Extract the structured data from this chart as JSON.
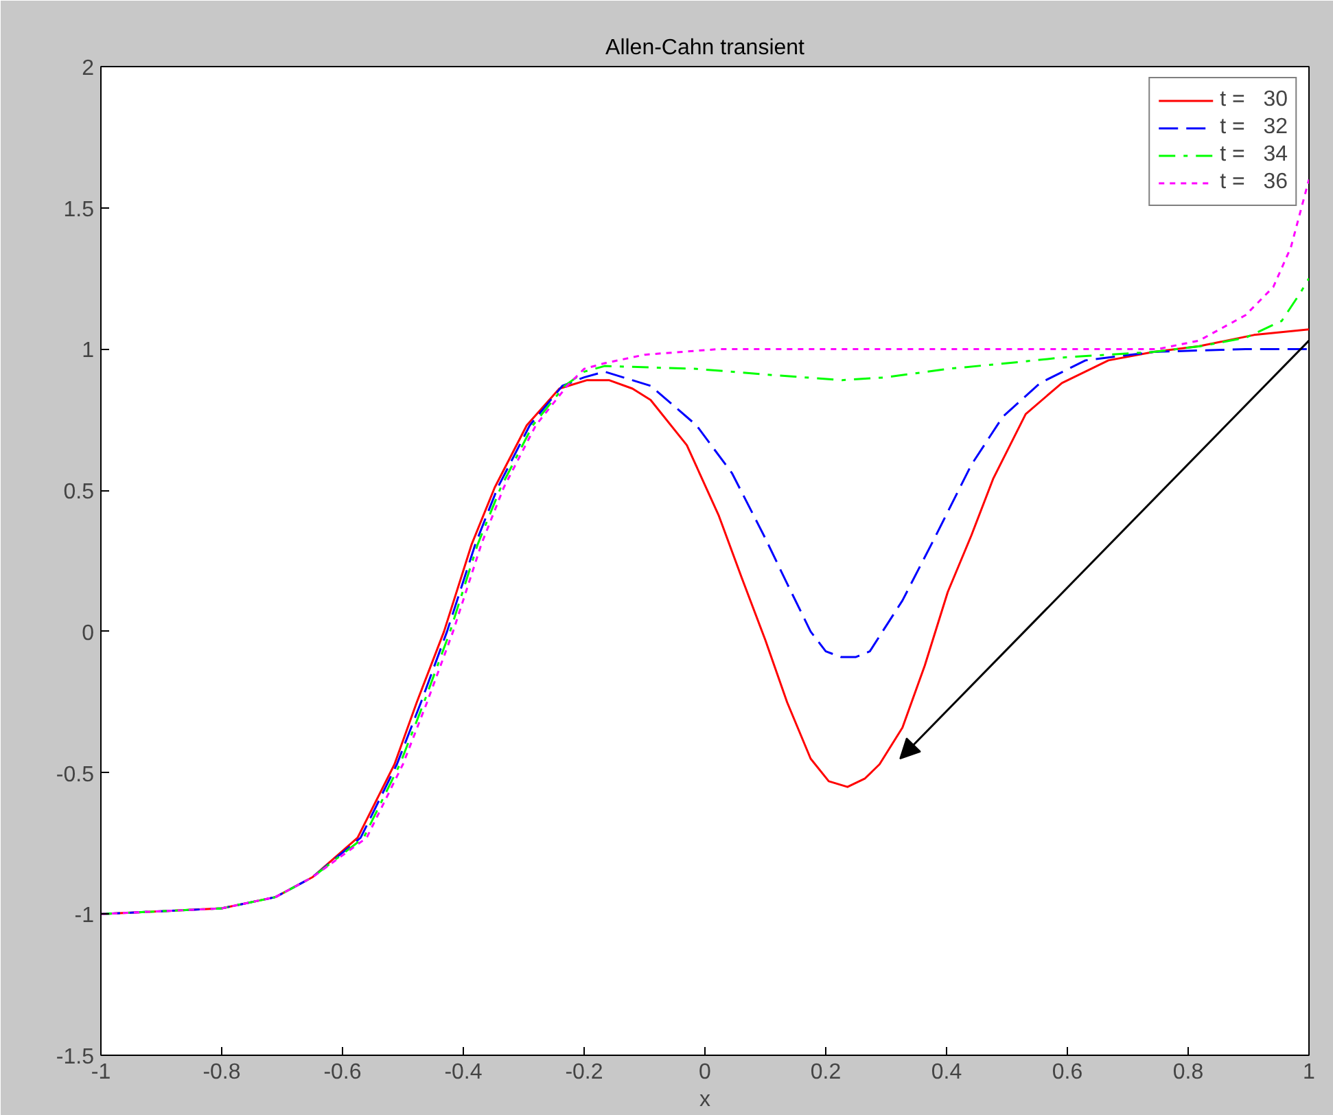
{
  "chart_data": {
    "type": "line",
    "title": "Allen-Cahn transient",
    "xlabel": "x",
    "xlim": [
      -1,
      1
    ],
    "ylim": [
      -1.5,
      2
    ],
    "xticks": [
      -1,
      -0.8,
      -0.6,
      -0.4,
      -0.2,
      0,
      0.2,
      0.4,
      0.6,
      0.8,
      1
    ],
    "yticks": [
      -1.5,
      -1,
      -0.5,
      0,
      0.5,
      1,
      1.5,
      2
    ],
    "grid": false,
    "legend": "top right",
    "marker": "none",
    "series": [
      {
        "name": "t =   30",
        "color": "#ff0000",
        "line_style": "solid",
        "x": [
          -1,
          -0.9,
          -0.8,
          -0.711,
          -0.65,
          -0.575,
          -0.514,
          -0.477,
          -0.432,
          -0.386,
          -0.348,
          -0.295,
          -0.241,
          -0.195,
          -0.159,
          -0.12,
          -0.09,
          -0.03,
          0.023,
          0.061,
          0.1,
          0.136,
          0.175,
          0.205,
          0.236,
          0.265,
          0.289,
          0.327,
          0.364,
          0.402,
          0.441,
          0.477,
          0.531,
          0.591,
          0.668,
          0.743,
          0.818,
          0.909,
          1.0
        ],
        "values": [
          -1,
          -0.99,
          -0.98,
          -0.94,
          -0.87,
          -0.73,
          -0.47,
          -0.25,
          0.0,
          0.31,
          0.51,
          0.73,
          0.86,
          0.89,
          0.89,
          0.86,
          0.82,
          0.66,
          0.41,
          0.19,
          -0.03,
          -0.25,
          -0.45,
          -0.53,
          -0.55,
          -0.52,
          -0.47,
          -0.34,
          -0.12,
          0.14,
          0.34,
          0.54,
          0.77,
          0.88,
          0.96,
          0.99,
          1.01,
          1.05,
          1.07
        ]
      },
      {
        "name": "t =   32",
        "color": "#0000ff",
        "line_style": "dashed",
        "x": [
          -1,
          -0.9,
          -0.8,
          -0.711,
          -0.65,
          -0.57,
          -0.51,
          -0.47,
          -0.427,
          -0.38,
          -0.343,
          -0.29,
          -0.236,
          -0.2,
          -0.166,
          -0.09,
          -0.014,
          0.045,
          0.1,
          0.136,
          0.175,
          0.2,
          0.225,
          0.25,
          0.273,
          0.327,
          0.38,
          0.441,
          0.493,
          0.555,
          0.63,
          0.743,
          0.895,
          1.0
        ],
        "values": [
          -1,
          -0.99,
          -0.98,
          -0.94,
          -0.87,
          -0.73,
          -0.47,
          -0.25,
          0.0,
          0.31,
          0.51,
          0.73,
          0.87,
          0.9,
          0.92,
          0.87,
          0.73,
          0.56,
          0.33,
          0.17,
          0.0,
          -0.07,
          -0.09,
          -0.09,
          -0.07,
          0.11,
          0.33,
          0.59,
          0.76,
          0.88,
          0.96,
          0.99,
          1.0,
          1.0
        ]
      },
      {
        "name": "t =   34",
        "color": "#00ff00",
        "line_style": "dashdot",
        "x": [
          -1,
          -0.9,
          -0.8,
          -0.711,
          -0.65,
          -0.565,
          -0.505,
          -0.465,
          -0.422,
          -0.376,
          -0.338,
          -0.285,
          -0.232,
          -0.2,
          -0.166,
          -0.014,
          0.1,
          0.227,
          0.3,
          0.402,
          0.5,
          0.591,
          0.743,
          0.82,
          0.895,
          0.955,
          0.986,
          1.0
        ],
        "values": [
          -1,
          -0.99,
          -0.98,
          -0.94,
          -0.87,
          -0.73,
          -0.47,
          -0.25,
          0.0,
          0.31,
          0.51,
          0.73,
          0.87,
          0.92,
          0.94,
          0.93,
          0.91,
          0.89,
          0.9,
          0.93,
          0.95,
          0.97,
          0.99,
          1.01,
          1.04,
          1.1,
          1.2,
          1.25
        ]
      },
      {
        "name": "t =   36",
        "color": "#ff00ff",
        "line_style": "dotted",
        "x": [
          -1,
          -0.9,
          -0.8,
          -0.711,
          -0.65,
          -0.56,
          -0.5,
          -0.46,
          -0.417,
          -0.37,
          -0.333,
          -0.28,
          -0.228,
          -0.2,
          -0.166,
          -0.1,
          0.023,
          0.2,
          0.4,
          0.6,
          0.75,
          0.818,
          0.895,
          0.941,
          0.97,
          1.0
        ],
        "values": [
          -1,
          -0.99,
          -0.98,
          -0.94,
          -0.87,
          -0.73,
          -0.47,
          -0.25,
          0.0,
          0.31,
          0.51,
          0.73,
          0.87,
          0.93,
          0.95,
          0.98,
          1.0,
          1.0,
          1.0,
          1.0,
          1.0,
          1.03,
          1.12,
          1.22,
          1.36,
          1.6
        ]
      }
    ]
  }
}
